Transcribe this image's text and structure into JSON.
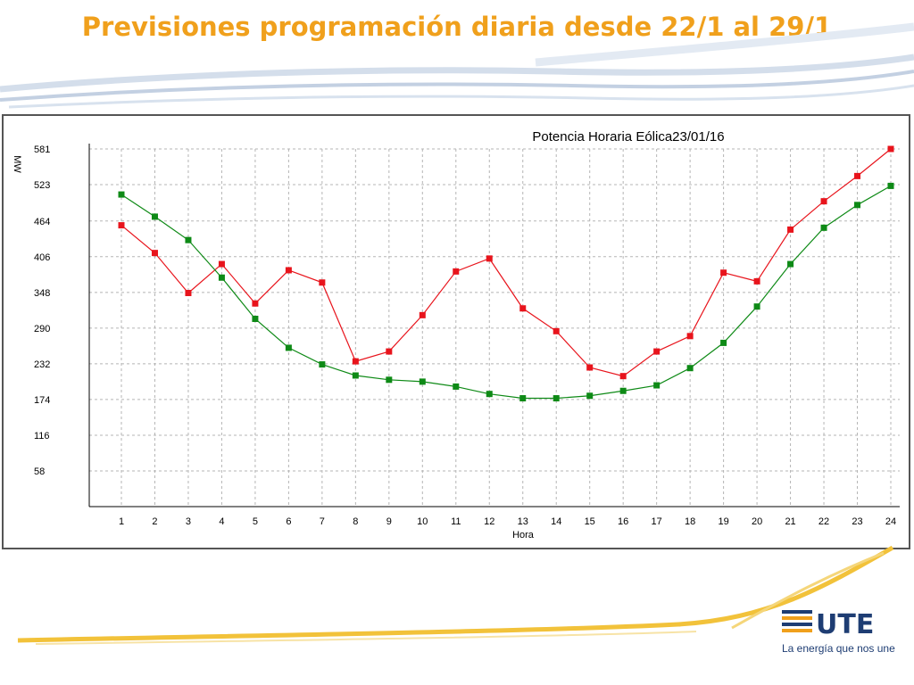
{
  "slide": {
    "title": "Previsiones programación diaria desde 22/1 al 29/1",
    "tagline": "La energía que nos une",
    "logo_text": "UTE",
    "accent_color": "#f0a01c"
  },
  "chart_data": {
    "type": "line",
    "title": "Potencia Horaria Eólica23/01/16",
    "xlabel": "Hora",
    "ylabel": "MW",
    "x": [
      1,
      2,
      3,
      4,
      5,
      6,
      7,
      8,
      9,
      10,
      11,
      12,
      13,
      14,
      15,
      16,
      17,
      18,
      19,
      20,
      21,
      22,
      23,
      24
    ],
    "yticks": [
      58,
      116,
      174,
      232,
      290,
      348,
      406,
      464,
      523,
      581
    ],
    "ylim": [
      0,
      581
    ],
    "grid": true,
    "legend": "none",
    "series": [
      {
        "color": "#e8141c",
        "marker": "square",
        "values": [
          457,
          412,
          347,
          394,
          330,
          384,
          364,
          236,
          252,
          311,
          382,
          403,
          322,
          285,
          226,
          212,
          252,
          277,
          380,
          366,
          450,
          496,
          537,
          581
        ]
      },
      {
        "color": "#0e8a16",
        "marker": "square",
        "values": [
          507,
          471,
          433,
          372,
          305,
          258,
          231,
          213,
          206,
          203,
          195,
          183,
          176,
          176,
          180,
          188,
          197,
          225,
          266,
          325,
          394,
          453,
          490,
          521
        ]
      }
    ]
  }
}
